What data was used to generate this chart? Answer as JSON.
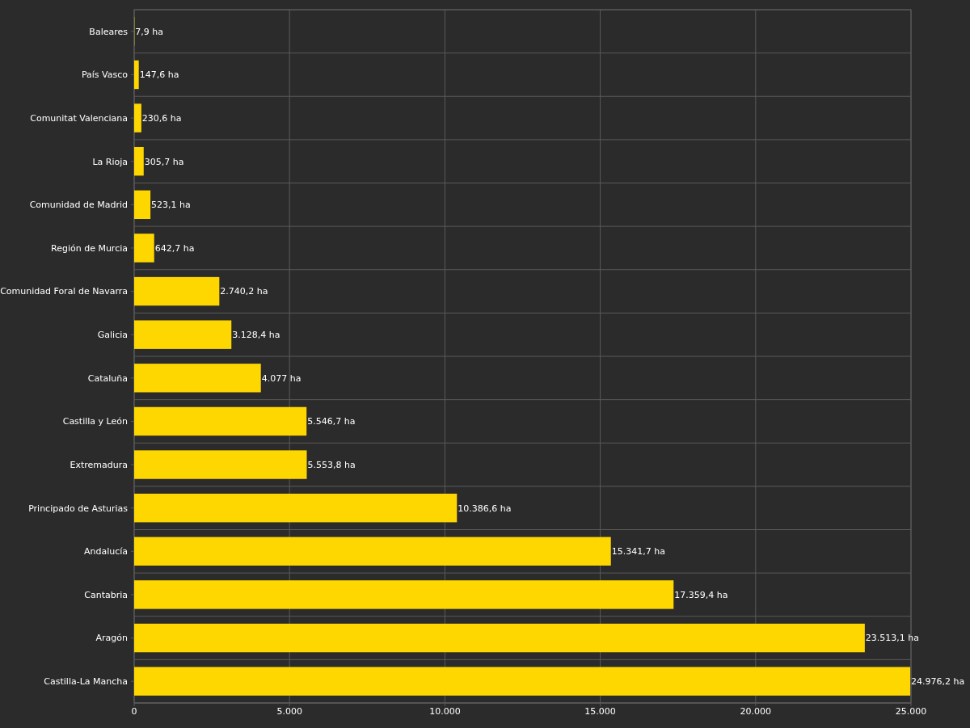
{
  "chart_data": {
    "type": "bar",
    "orientation": "horizontal",
    "categories": [
      "Baleares",
      "País Vasco",
      "Comunitat Valenciana",
      "La Rioja",
      "Comunidad de Madrid",
      "Región de Murcia",
      "Comunidad Foral de Navarra",
      "Galicia",
      "Cataluña",
      "Castilla y León",
      "Extremadura",
      "Principado de Asturias",
      "Andalucía",
      "Cantabria",
      "Aragón",
      "Castilla-La Mancha"
    ],
    "values": [
      7.9,
      147.6,
      230.6,
      305.7,
      523.1,
      642.7,
      2740.2,
      3128.4,
      4077,
      5546.7,
      5553.8,
      10386.6,
      15341.7,
      17359.4,
      23513.1,
      24976.2
    ],
    "value_labels": [
      "7,9 ha",
      "147,6 ha",
      "230,6 ha",
      "305,7 ha",
      "523,1 ha",
      "642,7 ha",
      "2.740,2 ha",
      "3.128,4 ha",
      "4.077 ha",
      "5.546,7 ha",
      "5.553,8 ha",
      "10.386,6 ha",
      "15.341,7 ha",
      "17.359,4 ha",
      "23.513,1 ha",
      "24.976,2 ha"
    ],
    "color": "#ffd700",
    "xlim": [
      0,
      25000
    ],
    "xticks": [
      0,
      {
        "value": 5000,
        "label": "5.000"
      },
      {
        "value": 10000,
        "label": "10.000"
      },
      {
        "value": 15000,
        "label": "15.000"
      },
      {
        "value": 20000,
        "label": "20.000"
      },
      {
        "value": 25000,
        "label": "25.000"
      }
    ],
    "grid": true
  }
}
